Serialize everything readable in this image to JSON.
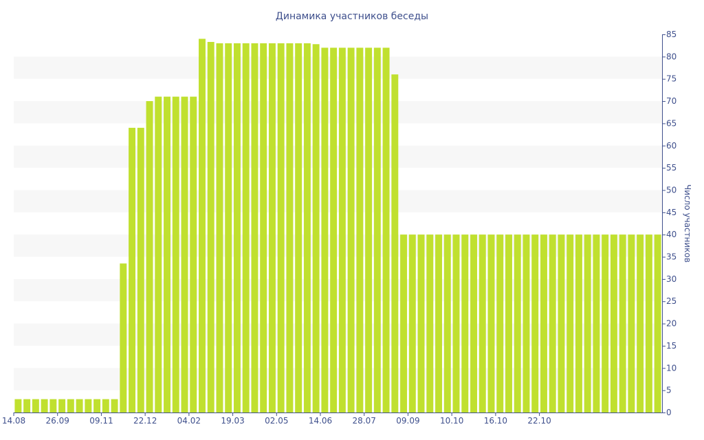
{
  "chart_data": {
    "type": "bar",
    "title": "Динамика участников беседы",
    "ylabel": "Число участников",
    "xlabel": "",
    "ylim": [
      0,
      85
    ],
    "y_ticks": [
      0,
      5,
      10,
      15,
      20,
      25,
      30,
      35,
      40,
      45,
      50,
      55,
      60,
      65,
      70,
      75,
      80,
      85
    ],
    "y_axis_side": "right",
    "grid": "alternating horizontal bands",
    "x_tick_labels": [
      {
        "label": "14.08",
        "index": 0
      },
      {
        "label": "26.09",
        "index": 5
      },
      {
        "label": "09.11",
        "index": 10
      },
      {
        "label": "22.12",
        "index": 15
      },
      {
        "label": "04.02",
        "index": 20
      },
      {
        "label": "19.03",
        "index": 25
      },
      {
        "label": "02.05",
        "index": 30
      },
      {
        "label": "14.06",
        "index": 35
      },
      {
        "label": "28.07",
        "index": 40
      },
      {
        "label": "09.09",
        "index": 45
      },
      {
        "label": "10.10",
        "index": 50
      },
      {
        "label": "16.10",
        "index": 55
      },
      {
        "label": "22.10",
        "index": 60
      }
    ],
    "values": [
      3,
      3,
      3,
      3,
      3,
      3,
      3,
      3,
      3,
      3,
      3,
      3,
      33.5,
      64,
      64,
      70,
      71,
      71,
      71,
      71,
      71,
      84,
      83.3,
      83,
      83,
      83,
      83,
      83,
      83,
      83,
      83,
      83,
      83,
      83,
      82.8,
      82,
      82,
      82,
      82,
      82,
      82,
      82,
      82,
      76,
      40,
      40,
      40,
      40,
      40,
      40,
      40,
      40,
      40,
      40,
      40,
      40,
      40,
      40,
      40,
      40,
      40,
      40,
      40,
      40,
      40,
      40,
      40,
      40,
      40,
      40,
      40,
      40,
      40,
      40
    ],
    "colors": {
      "bar": "#c0e02f",
      "text": "#3e4f8c",
      "band": "#f7f7f7",
      "axis": "#3e4f8c"
    }
  }
}
